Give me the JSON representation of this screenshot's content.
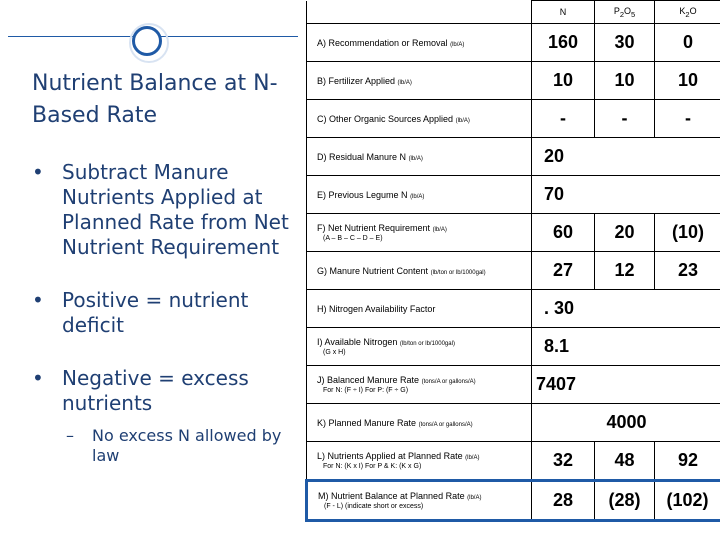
{
  "slide": {
    "title": "Nutrient Balance at N-Based Rate",
    "bullets": [
      "Subtract Manure Nutrients Applied at Planned Rate from Net Nutrient Requirement",
      "Positive = nutrient deficit",
      "Negative = excess nutrients"
    ],
    "sub_bullet": "No excess N allowed by law",
    "sub_dash": "–"
  },
  "table": {
    "headers": {
      "n": "N",
      "p2o5_base": "P",
      "p2o5_sub1": "2",
      "p2o5_mid": "O",
      "p2o5_sub2": "5",
      "k2o_base": "K",
      "k2o_sub": "2",
      "k2o_end": "O"
    },
    "rows": [
      {
        "label": "A) Recommendation or Removal",
        "unit": "(lb/A)",
        "sub": "",
        "n": "160",
        "p": "30",
        "k": "0"
      },
      {
        "label": "B) Fertilizer Applied",
        "unit": "(lb/A)",
        "sub": "",
        "n": "10",
        "p": "10",
        "k": "10"
      },
      {
        "label": "C) Other Organic Sources Applied",
        "unit": "(lb/A)",
        "sub": "",
        "n": "-",
        "p": "-",
        "k": "-"
      },
      {
        "label": "D) Residual Manure N",
        "unit": "(lb/A)",
        "sub": "",
        "n": "20",
        "p": "",
        "k": ""
      },
      {
        "label": "E) Previous Legume N",
        "unit": "(lb/A)",
        "sub": "",
        "n": "70",
        "p": "",
        "k": ""
      },
      {
        "label": "F) Net Nutrient Requirement",
        "unit": "(lb/A)",
        "sub": "(A – B – C – D – E)",
        "n": "60",
        "p": "20",
        "k": "(10)"
      },
      {
        "label": "G) Manure Nutrient Content",
        "unit": "(lb/ton or lb/1000gal)",
        "sub": "",
        "n": "27",
        "p": "12",
        "k": "23"
      },
      {
        "label": "H) Nitrogen Availability Factor",
        "unit": "",
        "sub": "",
        "n": ". 30",
        "p": "",
        "k": ""
      },
      {
        "label": "I) Available Nitrogen",
        "unit": "(lb/ton or lb/1000gal)",
        "sub": "(G x H)",
        "n": "8.1",
        "p": "",
        "k": ""
      },
      {
        "label": "J) Balanced Manure Rate",
        "unit": "(tons/A or gallons/A)",
        "sub": "For N: (F ÷ I)   For P: (F ÷ G)",
        "n": "7407",
        "p": "",
        "k": ""
      },
      {
        "label": "K) Planned Manure Rate",
        "unit": "(tons/A or gallons/A)",
        "sub": "",
        "n": "4000",
        "p": "",
        "k": ""
      },
      {
        "label": "L) Nutrients Applied at Planned Rate",
        "unit": "(lb/A)",
        "sub": "For N: (K x I)   For P & K: (K x G)",
        "n": "32",
        "p": "48",
        "k": "92"
      },
      {
        "label": "M) Nutrient Balance at Planned Rate",
        "unit": "(lb/A)",
        "sub": "(F - L)    (indicate short or excess)",
        "n": "28",
        "p": "(28)",
        "k": "(102)"
      }
    ]
  },
  "colors": {
    "accent": "#1f5aa6",
    "title": "#1f3f73"
  }
}
